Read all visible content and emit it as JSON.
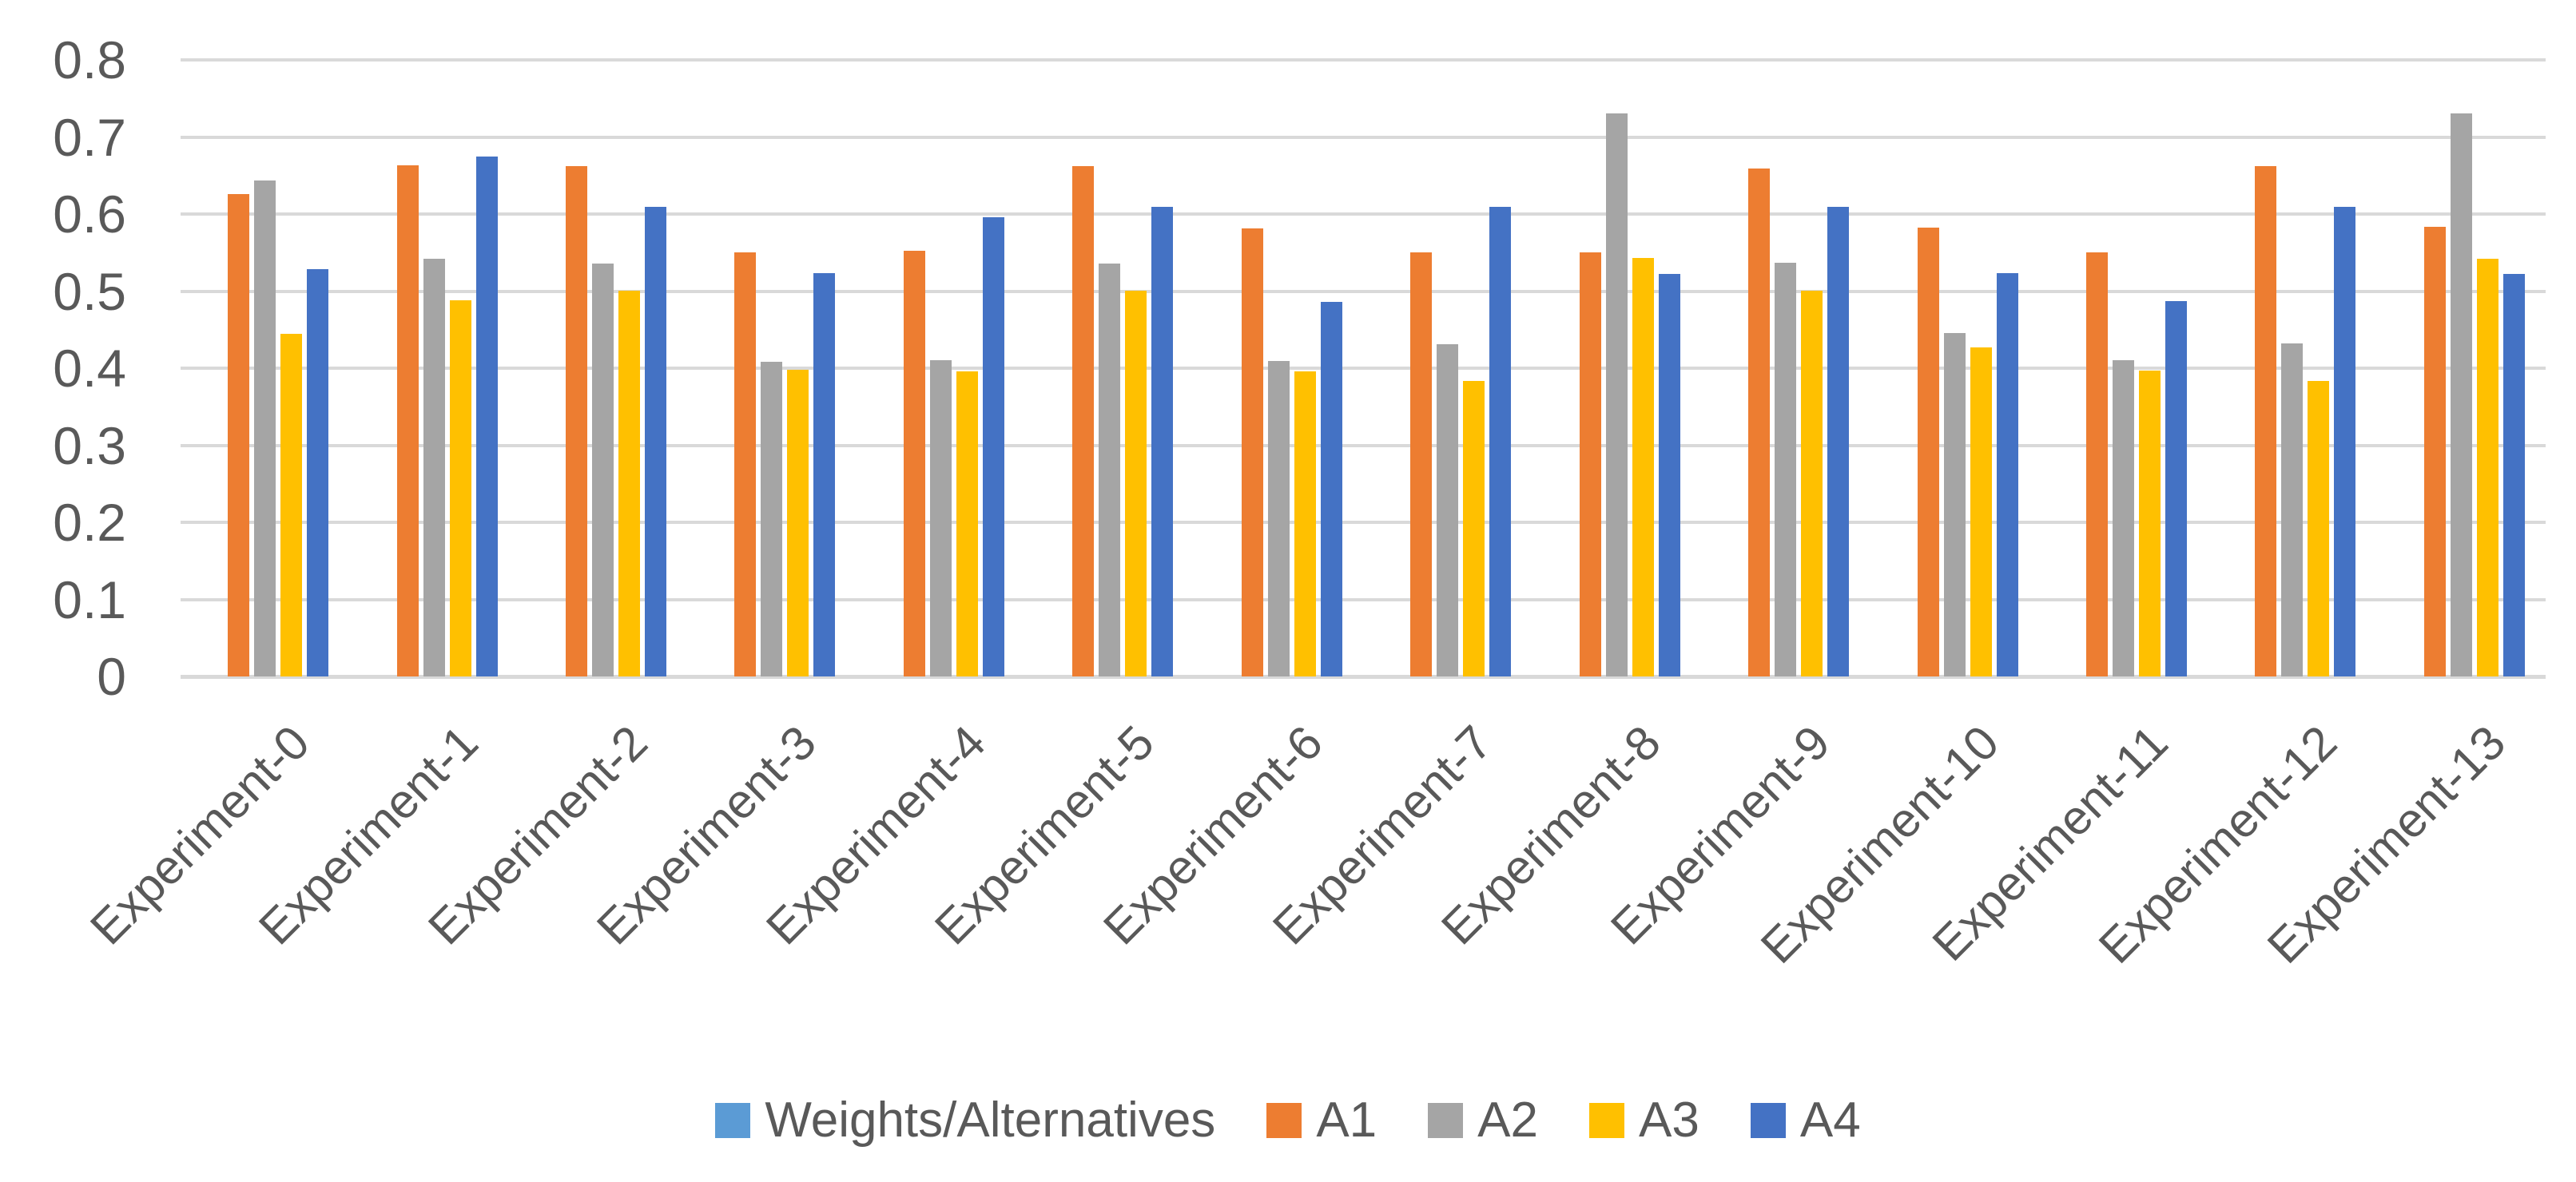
{
  "chart_data": {
    "type": "bar",
    "title": "",
    "xlabel": "",
    "ylabel": "",
    "categories": [
      "Experiment-0",
      "Experiment-1",
      "Experiment-2",
      "Experiment-3",
      "Experiment-4",
      "Experiment-5",
      "Experiment-6",
      "Experiment-7",
      "Experiment-8",
      "Experiment-9",
      "Experiment-10",
      "Experiment-11",
      "Experiment-12",
      "Experiment-13"
    ],
    "series": [
      {
        "name": "Weights/Alternatives",
        "color": "#5B9BD5",
        "values": [
          0,
          0,
          0,
          0,
          0,
          0,
          0,
          0,
          0,
          0,
          0,
          0,
          0,
          0
        ]
      },
      {
        "name": "A1",
        "color": "#ED7D31",
        "values": [
          0.626,
          0.663,
          0.662,
          0.55,
          0.552,
          0.662,
          0.581,
          0.55,
          0.55,
          0.659,
          0.582,
          0.55,
          0.662,
          0.583
        ]
      },
      {
        "name": "A2",
        "color": "#A5A5A5",
        "values": [
          0.644,
          0.542,
          0.536,
          0.408,
          0.41,
          0.536,
          0.409,
          0.431,
          0.731,
          0.537,
          0.446,
          0.41,
          0.432,
          0.731
        ]
      },
      {
        "name": "A3",
        "color": "#FFC000",
        "values": [
          0.445,
          0.488,
          0.501,
          0.398,
          0.396,
          0.5,
          0.396,
          0.383,
          0.543,
          0.5,
          0.427,
          0.397,
          0.383,
          0.542
        ]
      },
      {
        "name": "A4",
        "color": "#4472C4",
        "values": [
          0.528,
          0.675,
          0.609,
          0.523,
          0.596,
          0.609,
          0.486,
          0.609,
          0.522,
          0.609,
          0.523,
          0.487,
          0.609,
          0.522
        ]
      }
    ],
    "ylim": [
      0,
      0.8
    ],
    "yticks": [
      {
        "value": 0.0,
        "label": "0"
      },
      {
        "value": 0.1,
        "label": "0.1"
      },
      {
        "value": 0.2,
        "label": "0.2"
      },
      {
        "value": 0.3,
        "label": "0.3"
      },
      {
        "value": 0.4,
        "label": "0.4"
      },
      {
        "value": 0.5,
        "label": "0.5"
      },
      {
        "value": 0.6,
        "label": "0.6"
      },
      {
        "value": 0.7,
        "label": "0.7"
      },
      {
        "value": 0.8,
        "label": "0.8"
      },
      {
        "value": 0.0,
        "label": "0"
      }
    ],
    "grid": true,
    "legend_position": "bottom"
  },
  "style": {
    "gridline_color": "#D9D9D9",
    "axis_text_color": "#595959",
    "background": "#FFFFFF"
  }
}
